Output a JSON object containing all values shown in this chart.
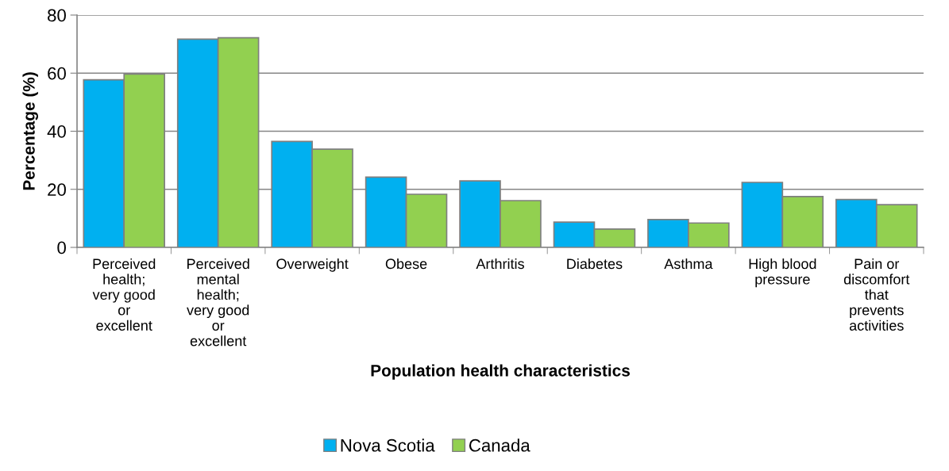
{
  "chart_data": {
    "type": "bar",
    "xlabel": "Population health characteristics",
    "ylabel": "Percentage (%)",
    "categories": [
      "Perceived\nhealth;\nvery good\nor\nexcellent",
      "Perceived\nmental\nhealth;\nvery good\nor\nexcellent",
      "Overweight",
      "Obese",
      "Arthritis",
      "Diabetes",
      "Asthma",
      "High blood\npressure",
      "Pain or\ndiscomfort\nthat\nprevents\nactivities"
    ],
    "series": [
      {
        "name": "Nova Scotia",
        "color": "#00b0f0",
        "values": [
          57.7,
          71.7,
          36.5,
          24.2,
          22.9,
          8.7,
          9.6,
          22.4,
          16.5
        ]
      },
      {
        "name": "Canada",
        "color": "#92d050",
        "values": [
          59.7,
          72.2,
          33.8,
          18.3,
          16.1,
          6.3,
          8.4,
          17.5,
          14.7
        ]
      }
    ],
    "ylim": [
      0,
      80
    ],
    "yticks": [
      0,
      20,
      40,
      60,
      80
    ],
    "grid": "y",
    "legend": "bottom"
  }
}
